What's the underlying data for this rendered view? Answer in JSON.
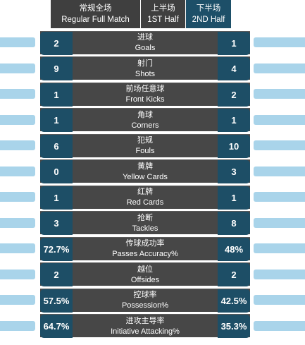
{
  "tabs": [
    {
      "cn": "常规全场",
      "en": "Regular Full Match"
    },
    {
      "cn": "上半场",
      "en": "1ST Half"
    },
    {
      "cn": "下半场",
      "en": "2ND Half"
    }
  ],
  "colors": {
    "header_bg": "#3f3f3f",
    "active_tab": "#1d4f68",
    "center_bg": "#474747",
    "value_box": "#1d4e66",
    "sidebar": "#a9d4ea"
  },
  "stats": [
    {
      "cn": "进球",
      "en": "Goals",
      "home": "2",
      "away": "1"
    },
    {
      "cn": "射门",
      "en": "Shots",
      "home": "9",
      "away": "4"
    },
    {
      "cn": "前场任意球",
      "en": "Front Kicks",
      "home": "1",
      "away": "2"
    },
    {
      "cn": "角球",
      "en": "Corners",
      "home": "1",
      "away": "1"
    },
    {
      "cn": "犯规",
      "en": "Fouls",
      "home": "6",
      "away": "10"
    },
    {
      "cn": "黄牌",
      "en": "Yellow Cards",
      "home": "0",
      "away": "3"
    },
    {
      "cn": "红牌",
      "en": "Red Cards",
      "home": "1",
      "away": "1"
    },
    {
      "cn": "抢断",
      "en": "Tackles",
      "home": "3",
      "away": "8"
    },
    {
      "cn": "传球成功率",
      "en": "Passes Accuracy%",
      "home": "72.7%",
      "away": "48%"
    },
    {
      "cn": "越位",
      "en": "Offsides",
      "home": "2",
      "away": "2"
    },
    {
      "cn": "控球率",
      "en": "Possession%",
      "home": "57.5%",
      "away": "42.5%"
    },
    {
      "cn": "进攻主导率",
      "en": "Initiative Attacking%",
      "home": "64.7%",
      "away": "35.3%"
    }
  ]
}
